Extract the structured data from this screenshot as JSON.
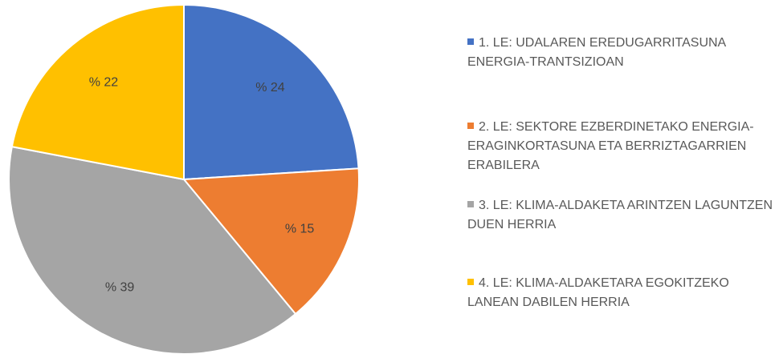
{
  "chart_data": {
    "type": "pie",
    "categories": [
      "1. LE: UDALAREN EREDUGARRITASUNA ENERGIA-TRANTSIZIOAN",
      "2. LE: SEKTORE EZBERDINETAKO ENERGIA-ERAGINKORTASUNA ETA BERRIZTAGARRIEN ERABILERA",
      "3. LE: KLIMA-ALDAKETA ARINTZEN LAGUNTZEN DUEN HERRIA",
      "4. LE: KLIMA-ALDAKETARA EGOKITZEKO LANEAN DABILEN HERRIA"
    ],
    "values": [
      24,
      15,
      39,
      22
    ],
    "value_labels": [
      "% 24",
      "% 15",
      "% 39",
      "% 22"
    ],
    "colors": [
      "#4472c4",
      "#ed7d31",
      "#a5a5a5",
      "#ffc000"
    ],
    "legend": "right"
  }
}
